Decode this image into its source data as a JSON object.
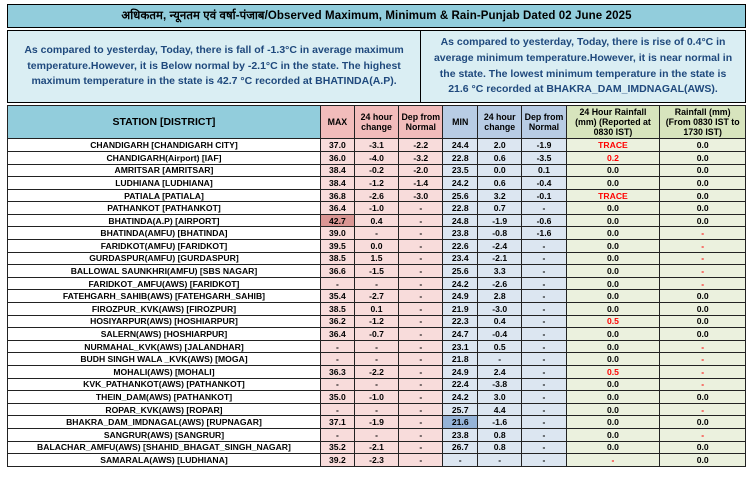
{
  "title": "अधिकतम, न्यूनतम एवं वर्षा-पंजाब/Observed Maximum, Minimum & Rain-Punjab Dated 02 June 2025",
  "summaries": {
    "max": "As compared to yesterday, Today, there is fall of -1.3°C in average maximum temperature.However, it is Below normal by -2.1°C in the state. The highest maximum temperature in the state is 42.7 °C recorded at BHATINDA(A.P).",
    "min": "As compared to yesterday, Today, there is rise of 0.4°C in average minimum temperature.However, it is near normal in the state. The lowest minimum temperature in the state is 21.6 °C recorded at BHAKRA_DAM_IMDNAGAL(AWS)."
  },
  "colors": {
    "title_bg": "#92CDDC",
    "summary_bg": "#DAEEF3",
    "summary_text": "#1F497D",
    "max_header_bg": "#F2BCBB",
    "max_cell_bg": "#F8DCDB",
    "min_header_bg": "#B8CCE4",
    "min_cell_bg": "#DCE6F1",
    "rain_header_bg": "#D7E4BD",
    "rain_cell_bg": "#EBF1DE",
    "highest_max_highlight": "#DA9694",
    "lowest_min_highlight": "#95B3D7",
    "alert_text": "#FF0000"
  },
  "table": {
    "headers": [
      "STATION  [DISTRICT]",
      "MAX",
      "24 hour change",
      "Dep from Normal",
      "MIN",
      "24 hour change",
      "Dep from Normal",
      "24 Hour Rainfall (mm) (Reported at 0830 IST)",
      "Rainfall (mm) (From 0830 IST to 1730 IST)"
    ],
    "rows": [
      {
        "station": "CHANDIGARH  [CHANDIGARH CITY]",
        "values": [
          "37.0",
          "-3.1",
          "-2.2",
          "24.4",
          "2.0",
          "-1.9",
          "TRACE",
          "0.0"
        ],
        "red": [
          6
        ]
      },
      {
        "station": "CHANDIGARH(Airport)  [IAF]",
        "values": [
          "36.0",
          "-4.0",
          "-3.2",
          "22.8",
          "0.6",
          "-3.5",
          "0.2",
          "0.0"
        ],
        "red": [
          6
        ]
      },
      {
        "station": "AMRITSAR  [AMRITSAR]",
        "values": [
          "38.4",
          "-0.2",
          "-2.0",
          "23.5",
          "0.0",
          "0.1",
          "0.0",
          "0.0"
        ],
        "red": []
      },
      {
        "station": "LUDHIANA  [LUDHIANA]",
        "values": [
          "38.4",
          "-1.2",
          "-1.4",
          "24.2",
          "0.6",
          "-0.4",
          "0.0",
          "0.0"
        ],
        "red": []
      },
      {
        "station": "PATIALA  [PATIALA]",
        "values": [
          "36.8",
          "-2.6",
          "-3.0",
          "25.6",
          "3.2",
          "-0.1",
          "TRACE",
          "0.0"
        ],
        "red": [
          6
        ]
      },
      {
        "station": "PATHANKOT  [PATHANKOT]",
        "values": [
          "36.4",
          "-1.0",
          "-",
          "22.8",
          "0.7",
          "-",
          "0.0",
          "0.0"
        ],
        "red": []
      },
      {
        "station": "BHATINDA(A.P)  [AIRPORT]",
        "values": [
          "42.7",
          "0.4",
          "-",
          "24.8",
          "-1.9",
          "-0.6",
          "0.0",
          "0.0"
        ],
        "red": [],
        "hl_max": 0
      },
      {
        "station": "BHATINDA(AMFU)  [BHATINDA]",
        "values": [
          "39.0",
          "-",
          "-",
          "23.8",
          "-0.8",
          "-1.6",
          "0.0",
          "-"
        ],
        "red": [
          7
        ]
      },
      {
        "station": "FARIDKOT(AMFU)  [FARIDKOT]",
        "values": [
          "39.5",
          "0.0",
          "-",
          "22.6",
          "-2.4",
          "-",
          "0.0",
          "-"
        ],
        "red": [
          7
        ]
      },
      {
        "station": "GURDASPUR(AMFU)  [GURDASPUR]",
        "values": [
          "38.5",
          "1.5",
          "-",
          "23.4",
          "-2.1",
          "-",
          "0.0",
          "-"
        ],
        "red": [
          7
        ]
      },
      {
        "station": "BALLOWAL SAUNKHRI(AMFU)  [SBS NAGAR]",
        "values": [
          "36.6",
          "-1.5",
          "-",
          "25.6",
          "3.3",
          "-",
          "0.0",
          "-"
        ],
        "red": [
          7
        ]
      },
      {
        "station": "FARIDKOT_AMFU(AWS)  [FARIDKOT]",
        "values": [
          "-",
          "-",
          "-",
          "24.2",
          "-2.6",
          "-",
          "0.0",
          "-"
        ],
        "red": [
          7
        ]
      },
      {
        "station": "FATEHGARH_SAHIB(AWS)  [FATEHGARH_SAHIB]",
        "values": [
          "35.4",
          "-2.7",
          "-",
          "24.9",
          "2.8",
          "-",
          "0.0",
          "0.0"
        ],
        "red": []
      },
      {
        "station": "FIROZPUR_KVK(AWS)  [FIROZPUR]",
        "values": [
          "38.5",
          "0.1",
          "-",
          "21.9",
          "-3.0",
          "-",
          "0.0",
          "0.0"
        ],
        "red": []
      },
      {
        "station": "HOSIYARPUR(AWS)  [HOSHIARPUR]",
        "values": [
          "36.2",
          "-1.2",
          "-",
          "22.3",
          "0.4",
          "-",
          "0.5",
          "0.0"
        ],
        "red": [
          6
        ]
      },
      {
        "station": "SALERN(AWS)  [HOSHIARPUR]",
        "values": [
          "36.4",
          "-0.7",
          "-",
          "24.7",
          "-0.4",
          "-",
          "0.0",
          "0.0"
        ],
        "red": []
      },
      {
        "station": "NURMAHAL_KVK(AWS)  [JALANDHAR]",
        "values": [
          "-",
          "-",
          "-",
          "23.1",
          "0.5",
          "-",
          "0.0",
          "-"
        ],
        "red": [
          7
        ]
      },
      {
        "station": "BUDH SINGH WALA _KVK(AWS)  [MOGA]",
        "values": [
          "-",
          "-",
          "-",
          "21.8",
          "-",
          "-",
          "0.0",
          "-"
        ],
        "red": [
          7
        ]
      },
      {
        "station": "MOHALI(AWS)  [MOHALI]",
        "values": [
          "36.3",
          "-2.2",
          "-",
          "24.9",
          "2.4",
          "-",
          "0.5",
          "-"
        ],
        "red": [
          6,
          7
        ]
      },
      {
        "station": "KVK_PATHANKOT(AWS)  [PATHANKOT]",
        "values": [
          "-",
          "-",
          "-",
          "22.4",
          "-3.8",
          "-",
          "0.0",
          "-"
        ],
        "red": [
          7
        ]
      },
      {
        "station": "THEIN_DAM(AWS)  [PATHANKOT]",
        "values": [
          "35.0",
          "-1.0",
          "-",
          "24.2",
          "3.0",
          "-",
          "0.0",
          "0.0"
        ],
        "red": []
      },
      {
        "station": "ROPAR_KVK(AWS)  [ROPAR]",
        "values": [
          "-",
          "-",
          "-",
          "25.7",
          "4.4",
          "-",
          "0.0",
          "-"
        ],
        "red": [
          7
        ]
      },
      {
        "station": "BHAKRA_DAM_IMDNAGAL(AWS)  [RUPNAGAR]",
        "values": [
          "37.1",
          "-1.9",
          "-",
          "21.6",
          "-1.6",
          "-",
          "0.0",
          "0.0"
        ],
        "red": [],
        "hl_min": 3
      },
      {
        "station": "SANGRUR(AWS)  [SANGRUR]",
        "values": [
          "-",
          "-",
          "-",
          "23.8",
          "0.8",
          "-",
          "0.0",
          "-"
        ],
        "red": [
          7
        ]
      },
      {
        "station": "BALACHAR_AMFU(AWS)  [SHAHID_BHAGAT_SINGH_NAGAR]",
        "values": [
          "35.2",
          "-2.1",
          "-",
          "26.7",
          "0.8",
          "-",
          "0.0",
          "0.0"
        ],
        "red": []
      },
      {
        "station": "SAMARALA(AWS)  [LUDHIANA]",
        "values": [
          "39.2",
          "-2.3",
          "-",
          "-",
          "-",
          "-",
          "-",
          "0.0"
        ],
        "red": [
          6
        ]
      }
    ]
  }
}
